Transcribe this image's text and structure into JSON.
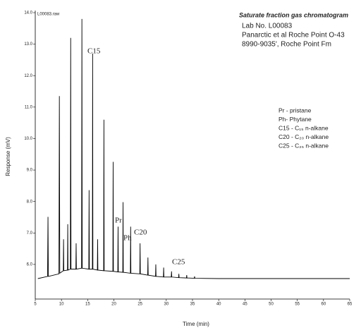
{
  "chart_data": {
    "type": "line",
    "title": "Saturate fraction gas chromatogram",
    "file_label": "L00083.raw",
    "header_lines": [
      "Lab No. L00083",
      "Panarctic et al Roche Point O-43",
      "8990-9035', Roche Point Fm"
    ],
    "legend_lines": [
      "Pr - pristane",
      "Ph- Phytane",
      "C15 - C₁₅ n-alkane",
      "C20 - C₂₀ n-alkane",
      "C25 - C₂₅ n-alkane"
    ],
    "peak_labels": [
      "C15",
      "Pr",
      "Ph",
      "C20",
      "C25"
    ],
    "x_label": "Time (min)",
    "y_label": "Response (mV)",
    "xlim": [
      5,
      65
    ],
    "xticks": [
      5,
      10,
      15,
      20,
      25,
      30,
      35,
      40,
      45,
      50,
      55,
      60,
      65
    ],
    "ylim": [
      4.9,
      14.0
    ],
    "yticks": [
      {
        "value": 6,
        "label": "6.0"
      },
      {
        "value": 7,
        "label": "7.0"
      },
      {
        "value": 8,
        "label": "8.0"
      },
      {
        "value": 9,
        "label": "9.0"
      },
      {
        "value": 10,
        "label": "10.0"
      },
      {
        "value": 11,
        "label": "11.0"
      },
      {
        "value": 12,
        "label": "12.0"
      },
      {
        "value": 13,
        "label": "13.0"
      },
      {
        "value": 14,
        "label": "14.0"
      }
    ],
    "color": "#000000",
    "x": [
      5.5,
      7.35,
      7.43,
      7.5,
      9.52,
      9.6,
      9.68,
      10.35,
      10.4,
      10.45,
      11.15,
      11.2,
      11.25,
      11.7,
      11.76,
      11.82,
      12.75,
      12.8,
      12.85,
      13.84,
      13.9,
      13.96,
      15.22,
      15.27,
      15.32,
      15.9,
      15.95,
      16.0,
      16.85,
      16.9,
      16.95,
      18.05,
      18.1,
      18.15,
      19.81,
      19.86,
      19.91,
      20.75,
      20.8,
      20.85,
      21.7,
      21.75,
      21.8,
      23.15,
      23.2,
      23.25,
      24.95,
      25.0,
      25.05,
      26.45,
      26.5,
      26.55,
      27.95,
      28.0,
      28.05,
      29.45,
      29.5,
      29.55,
      30.95,
      31.0,
      31.05,
      32.35,
      32.4,
      32.45,
      33.85,
      33.9,
      33.95,
      35.35,
      35.4,
      35.45,
      40,
      65
    ],
    "values": [
      5.55,
      5.62,
      7.51,
      5.62,
      5.7,
      11.35,
      5.72,
      5.8,
      6.8,
      5.8,
      5.82,
      7.28,
      5.82,
      5.85,
      13.2,
      5.85,
      5.85,
      6.67,
      5.85,
      5.88,
      13.8,
      5.88,
      5.85,
      8.36,
      5.85,
      5.85,
      12.7,
      5.85,
      5.82,
      6.8,
      5.82,
      5.8,
      10.6,
      5.8,
      5.78,
      9.26,
      5.78,
      5.76,
      7.2,
      5.76,
      5.75,
      7.98,
      5.75,
      5.72,
      7.2,
      5.72,
      5.7,
      6.67,
      5.7,
      5.66,
      6.22,
      5.66,
      5.62,
      6.0,
      5.62,
      5.6,
      5.9,
      5.6,
      5.6,
      5.78,
      5.6,
      5.58,
      5.7,
      5.58,
      5.57,
      5.66,
      5.57,
      5.56,
      5.62,
      5.56,
      5.55,
      5.55
    ]
  }
}
